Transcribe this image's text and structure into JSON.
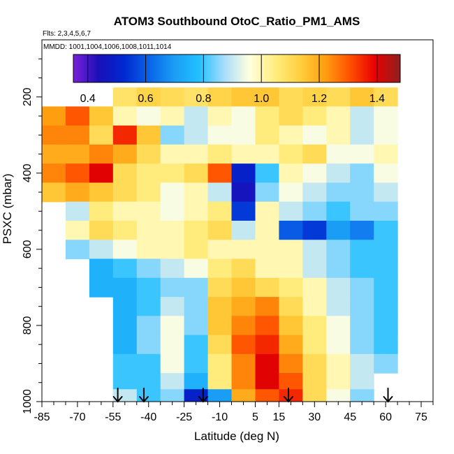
{
  "chart_data": {
    "type": "heatmap",
    "title": "ATOM3 Southbound OtoC_Ratio_PM1_AMS",
    "flights_text": "Flts: 2,3,4,5,6,7",
    "dates_text": "MMDD: 1001,1004,1006,1008,1011,1014",
    "xlabel": "Latitude (deg N)",
    "ylabel": "PSXC (mbar)",
    "xlim": [
      -85,
      80
    ],
    "ylim": [
      1000,
      50
    ],
    "x_ticks": [
      -85,
      -70,
      -55,
      -40,
      -25,
      -10,
      5,
      15,
      30,
      45,
      60,
      75
    ],
    "x_tick_labels": [
      "-85",
      "-70",
      "-55",
      "-40",
      "-25",
      "-10",
      "5",
      "15",
      "30",
      "45",
      "60",
      "75"
    ],
    "y_ticks": [
      200,
      400,
      600,
      800,
      1000
    ],
    "y_tick_labels": [
      "200",
      "400",
      "600",
      "800",
      "1000"
    ],
    "colorbar": {
      "range": [
        0.35,
        1.48
      ],
      "ticks": [
        0.4,
        0.6,
        0.8,
        1.0,
        1.2,
        1.4
      ],
      "tick_labels": [
        "0.4",
        "0.6",
        "0.8",
        "1.0",
        "1.2",
        "1.4"
      ],
      "colors": [
        "#7a20d8",
        "#1a10b8",
        "#0028d0",
        "#0a62e8",
        "#1a9df5",
        "#22c0ff",
        "#a8ddfa",
        "#ffffe0",
        "#ffee80",
        "#ffd040",
        "#ffa010",
        "#ff5000",
        "#e80000",
        "#8e2020"
      ]
    },
    "flight_arrows_lat": [
      -53,
      -42,
      -17,
      19,
      61
    ],
    "pressure_levels": [
      200,
      250,
      300,
      350,
      400,
      450,
      500,
      550,
      600,
      650,
      700,
      750,
      800,
      850,
      900,
      950,
      985
    ],
    "lat_bins": [
      -80,
      -70,
      -60,
      -50,
      -40,
      -30,
      -20,
      -10,
      0,
      10,
      20,
      30,
      40,
      50,
      60,
      70
    ],
    "values": [
      [
        null,
        null,
        null,
        1.08,
        1.12,
        1.1,
        1.08,
        1.12,
        1.15,
        1.15,
        1.1,
        1.12,
        1.1,
        1.15,
        1.1,
        null
      ],
      [
        1.22,
        1.3,
        1.15,
        1.0,
        0.95,
        1.0,
        0.9,
        1.0,
        0.95,
        1.05,
        1.1,
        1.05,
        1.0,
        0.9,
        0.95,
        null
      ],
      [
        1.25,
        1.25,
        1.1,
        1.35,
        1.15,
        0.85,
        0.9,
        0.95,
        0.95,
        1.05,
        1.0,
        0.95,
        1.0,
        0.9,
        0.95,
        null
      ],
      [
        1.2,
        1.2,
        1.25,
        1.2,
        1.1,
        1.0,
        1.0,
        1.05,
        1.0,
        1.0,
        1.05,
        1.1,
        0.95,
        0.95,
        1.0,
        null
      ],
      [
        1.25,
        1.3,
        1.4,
        1.1,
        1.05,
        1.05,
        1.1,
        1.3,
        0.5,
        0.8,
        1.0,
        0.95,
        0.9,
        0.85,
        0.95,
        null
      ],
      [
        1.15,
        1.2,
        1.15,
        1.1,
        1.05,
        0.95,
        1.0,
        0.9,
        0.45,
        0.85,
        0.95,
        0.9,
        0.85,
        0.85,
        0.9,
        null
      ],
      [
        null,
        0.9,
        1.05,
        1.0,
        1.0,
        0.95,
        1.0,
        1.05,
        0.55,
        1.0,
        0.9,
        0.85,
        0.8,
        0.85,
        0.85,
        null
      ],
      [
        null,
        1.0,
        1.1,
        1.05,
        1.0,
        1.0,
        1.05,
        1.1,
        0.9,
        1.0,
        0.6,
        0.55,
        0.7,
        0.65,
        0.8,
        null
      ],
      [
        null,
        0.85,
        0.9,
        0.95,
        1.0,
        1.0,
        1.05,
        1.0,
        1.0,
        1.0,
        1.0,
        0.9,
        0.85,
        0.8,
        0.8,
        null
      ],
      [
        null,
        null,
        0.75,
        0.8,
        0.85,
        0.9,
        0.95,
        1.05,
        1.1,
        1.0,
        1.0,
        0.9,
        0.85,
        0.8,
        0.8,
        null
      ],
      [
        null,
        null,
        0.75,
        0.75,
        0.8,
        0.85,
        0.85,
        1.1,
        1.15,
        1.1,
        1.05,
        1.0,
        0.9,
        0.85,
        0.8,
        null
      ],
      [
        null,
        null,
        null,
        0.75,
        0.8,
        0.9,
        0.85,
        1.15,
        1.2,
        1.25,
        1.1,
        1.0,
        0.9,
        0.85,
        0.8,
        null
      ],
      [
        null,
        null,
        null,
        0.75,
        0.85,
        0.95,
        0.85,
        1.15,
        1.25,
        1.3,
        1.15,
        1.05,
        0.95,
        0.85,
        0.8,
        null
      ],
      [
        null,
        null,
        null,
        0.75,
        0.85,
        0.95,
        0.8,
        1.1,
        1.3,
        1.35,
        1.2,
        1.05,
        0.95,
        0.85,
        0.8,
        null
      ],
      [
        null,
        null,
        null,
        0.8,
        0.8,
        0.95,
        0.8,
        1.05,
        1.25,
        1.4,
        1.25,
        1.1,
        1.0,
        0.9,
        0.85,
        null
      ],
      [
        null,
        null,
        null,
        0.8,
        0.8,
        0.9,
        0.75,
        1.05,
        1.25,
        1.4,
        1.3,
        1.1,
        1.0,
        0.9,
        null,
        null
      ],
      [
        null,
        null,
        null,
        0.9,
        0.8,
        0.85,
        0.5,
        0.7,
        1.2,
        1.3,
        1.35,
        1.1,
        0.95,
        0.85,
        null,
        null
      ]
    ]
  }
}
